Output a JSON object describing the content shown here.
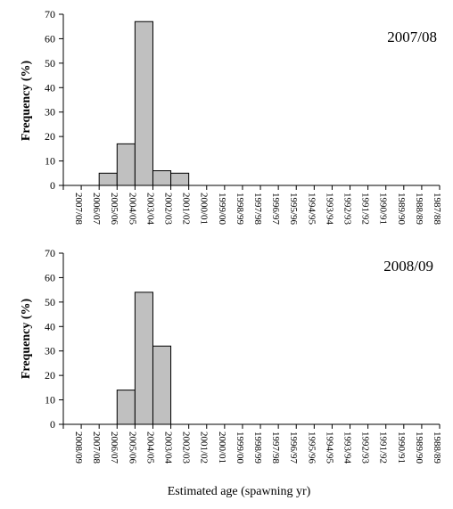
{
  "shared": {
    "ylabel": "Frequency (%)",
    "xlabel": "Estimated age (spawning yr)"
  },
  "chart_data": [
    {
      "type": "bar",
      "title": "2007/08",
      "xlabel": "",
      "ylabel": "Frequency (%)",
      "ylim": [
        0,
        70
      ],
      "yticks": [
        0,
        10,
        20,
        30,
        40,
        50,
        60,
        70
      ],
      "bar_color": "#c0c0c0",
      "categories": [
        "2007/08",
        "2006/07",
        "2005/06",
        "2004/05",
        "2003/04",
        "2002/03",
        "2001/02",
        "2000/01",
        "1999/00",
        "1998/99",
        "1997/98",
        "1996/97",
        "1995/96",
        "1994/95",
        "1993/94",
        "1992/93",
        "1991/92",
        "1990/91",
        "1989/90",
        "1988/89",
        "1987/88"
      ],
      "values": [
        0,
        0,
        5,
        17,
        67,
        6,
        5,
        0,
        0,
        0,
        0,
        0,
        0,
        0,
        0,
        0,
        0,
        0,
        0,
        0,
        0
      ]
    },
    {
      "type": "bar",
      "title": "2008/09",
      "xlabel": "Estimated age (spawning yr)",
      "ylabel": "Frequency (%)",
      "ylim": [
        0,
        70
      ],
      "yticks": [
        0,
        10,
        20,
        30,
        40,
        50,
        60,
        70
      ],
      "bar_color": "#c0c0c0",
      "categories": [
        "2008/09",
        "2007/08",
        "2006/07",
        "2005/06",
        "2004/05",
        "2003/04",
        "2002/03",
        "2001/02",
        "2000/01",
        "1999/00",
        "1998/99",
        "1997/98",
        "1996/97",
        "1995/96",
        "1994/95",
        "1993/94",
        "1992/93",
        "1991/92",
        "1990/91",
        "1989/90",
        "1988/89"
      ],
      "values": [
        0,
        0,
        0,
        14,
        54,
        32,
        0,
        0,
        0,
        0,
        0,
        0,
        0,
        0,
        0,
        0,
        0,
        0,
        0,
        0,
        0
      ]
    }
  ]
}
